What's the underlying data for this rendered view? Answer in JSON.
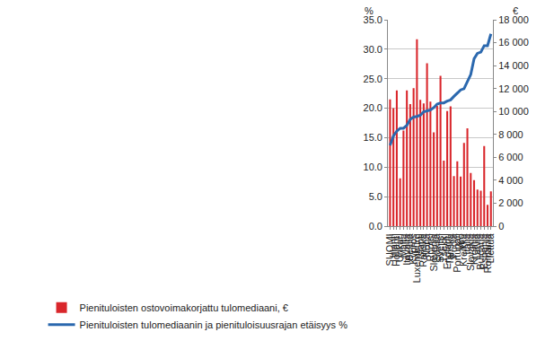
{
  "chart_data": {
    "type": "bar",
    "y_label": "%",
    "y2_label": "€",
    "categories": [
      "SUOMI",
      "Irlanti",
      "Hollanti",
      "Unkari",
      "Malta",
      "Itävalta",
      "Belgia",
      "Kypros",
      "Luxemburg",
      "Islanti",
      "Ranska",
      "Norja",
      "Ruotsi",
      "Slovenia",
      "Saksa",
      "Sveitsi",
      "Tšekki",
      "Englanti",
      "Tanska",
      "Puola",
      "Portugali",
      "Viro",
      "Kreikka",
      "Italia",
      "Slovakia",
      "Kroatia",
      "Latvia",
      "Bulgaria",
      "Espanja",
      "Romania",
      "Liettua"
    ],
    "series": [
      {
        "name": "Pienituloisten ostovoimakorjattu tulomediaani, €",
        "type": "bar",
        "axis": "y2",
        "color": "#d9262b",
        "values": [
          11060,
          10290,
          11830,
          4170,
          8330,
          11830,
          10650,
          12030,
          16300,
          11010,
          10700,
          14200,
          10850,
          8180,
          10490,
          13110,
          5710,
          10030,
          10440,
          4370,
          5660,
          4320,
          7250,
          8540,
          4630,
          4010,
          3190,
          3090,
          6990,
          1850,
          3030
        ]
      },
      {
        "name": "Pienituloisten tulomediaanin ja pienituloisuusrajan etäisyys %",
        "type": "line",
        "color": "#2b68ae",
        "values": [
          13.7,
          15.3,
          16.1,
          16.6,
          16.6,
          17.1,
          18.1,
          18.5,
          18.6,
          18.8,
          19.4,
          19.5,
          19.7,
          20.1,
          20.7,
          20.9,
          20.9,
          21.2,
          21.4,
          22.0,
          22.6,
          23.1,
          23.3,
          24.5,
          25.7,
          28.4,
          29.3,
          29.5,
          30.6,
          30.6,
          32.6
        ]
      }
    ],
    "ylim": [
      0,
      35
    ],
    "yticks": [
      {
        "value": 0,
        "label": "0.0"
      },
      {
        "value": 5,
        "label": "5.0"
      },
      {
        "value": 10,
        "label": "10.0"
      },
      {
        "value": 15,
        "label": "15.0"
      },
      {
        "value": 20,
        "label": "20.0"
      },
      {
        "value": 25,
        "label": "25.0"
      },
      {
        "value": 30,
        "label": "30.0"
      },
      {
        "value": 35,
        "label": "35.0"
      }
    ],
    "y2lim": [
      0,
      18000
    ],
    "y2ticks": [
      0,
      {
        "value": 2000,
        "label": "2 000"
      },
      {
        "value": 4000,
        "label": "4 000"
      },
      {
        "value": 6000,
        "label": "6 000"
      },
      {
        "value": 8000,
        "label": "8 000"
      },
      {
        "value": 10000,
        "label": "10 000"
      },
      {
        "value": 12000,
        "label": "12 000"
      },
      {
        "value": 14000,
        "label": "14 000"
      },
      {
        "value": 16000,
        "label": "16 000"
      },
      {
        "value": 18000,
        "label": "18 000"
      }
    ],
    "grid": true,
    "legend": "bottom"
  }
}
